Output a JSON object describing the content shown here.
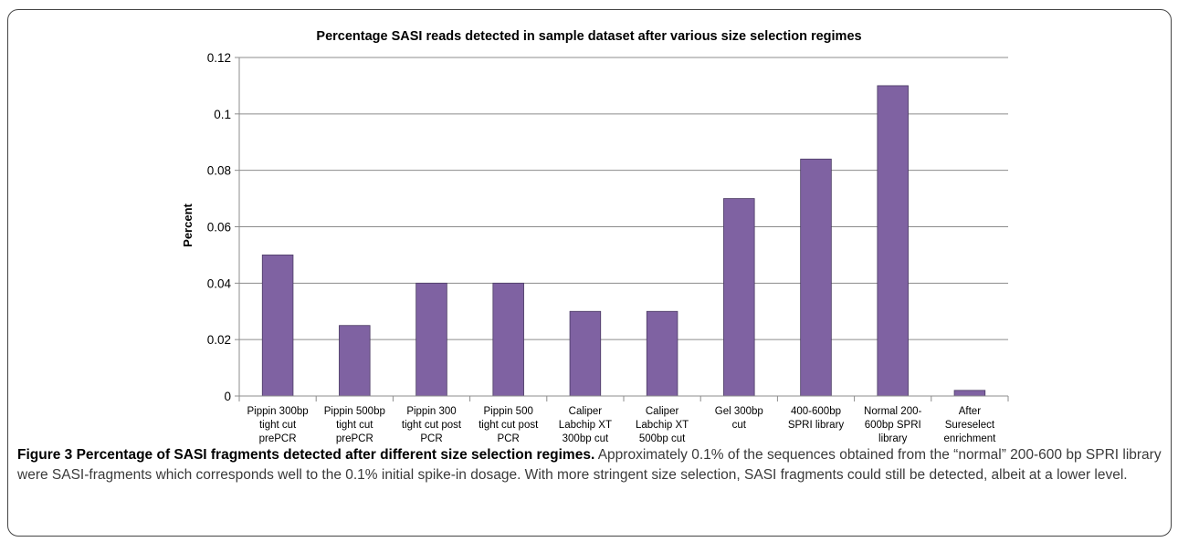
{
  "caption": {
    "title": "Figure 3 Percentage of SASI fragments detected after different size selection regimes.",
    "text": "Approximately 0.1% of the sequences obtained from the “normal” 200-600 bp SPRI library were SASI-fragments which corresponds well to the 0.1% initial spike-in dosage. With more stringent size selection, SASI fragments could still be detected, albeit at a lower level."
  },
  "chart_data": {
    "type": "bar",
    "title": "Percentage SASI reads detected in sample dataset after various size selection regimes",
    "xlabel": "",
    "ylabel": "Percent",
    "ylim": [
      0,
      0.12
    ],
    "yticks": [
      "0",
      "0.02",
      "0.04",
      "0.06",
      "0.08",
      "0.1",
      "0.12"
    ],
    "grid": true,
    "legend": "none",
    "bar_color": "#7f62a2",
    "categories": [
      [
        "Pippin 300bp",
        "tight cut",
        "prePCR"
      ],
      [
        "Pippin 500bp",
        "tight cut",
        "prePCR"
      ],
      [
        "Pippin 300",
        "tight cut post",
        "PCR"
      ],
      [
        "Pippin 500",
        "tight cut post",
        "PCR"
      ],
      [
        "Caliper",
        "Labchip XT",
        "300bp cut"
      ],
      [
        "Caliper",
        "Labchip XT",
        "500bp cut"
      ],
      [
        "Gel 300bp",
        "cut"
      ],
      [
        "400-600bp",
        "SPRI library"
      ],
      [
        "Normal 200-",
        "600bp SPRI",
        "library"
      ],
      [
        "After",
        "Sureselect",
        "enrichment"
      ]
    ],
    "values": [
      0.05,
      0.025,
      0.04,
      0.04,
      0.03,
      0.03,
      0.07,
      0.084,
      0.11,
      0.002
    ]
  }
}
